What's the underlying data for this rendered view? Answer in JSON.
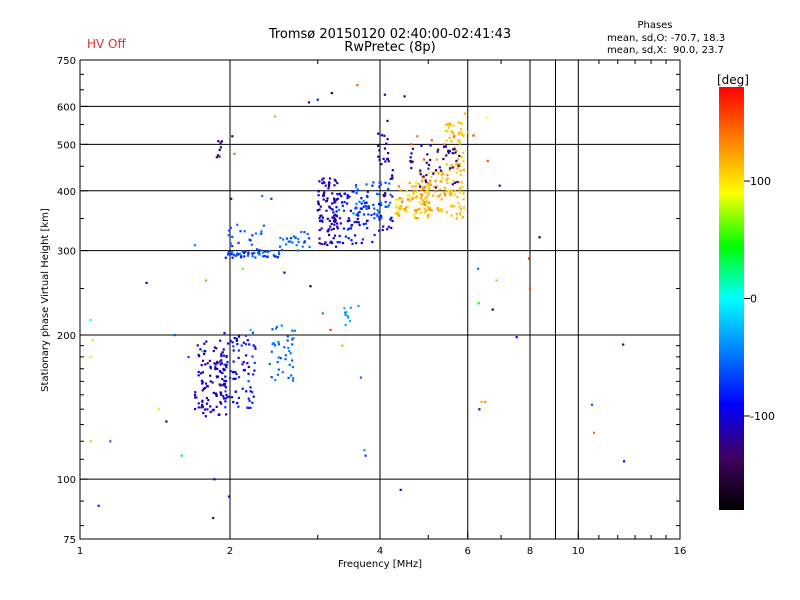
{
  "hv_status": "HV Off",
  "title": "Tromsø 20150120 02:40:00-02:41:43",
  "subtitle": "RwPretec (8p)",
  "phases": {
    "title": "Phases",
    "o_line": "mean, sd,O: -70.7, 18.3",
    "x_line": "mean, sd,X:  90.0, 23.7"
  },
  "colors": {
    "frame": "#000000",
    "hv_text": "#e03030"
  },
  "chart_data": {
    "type": "scatter",
    "title": "Tromsø 20150120 02:40:00-02:41:43",
    "subtitle": "RwPretec (8p)",
    "xlabel": "Frequency [MHz]",
    "ylabel": "Stationary phase Virtual Height [km]",
    "xscale": "log",
    "yscale": "log",
    "xlim": [
      1,
      16
    ],
    "ylim": [
      75,
      750
    ],
    "x_ticks": [
      1,
      2,
      4,
      6,
      8,
      10,
      16
    ],
    "x_tick_labels": [
      "1",
      "2",
      "4",
      "6",
      "8",
      "10",
      "16"
    ],
    "y_ticks": [
      75,
      100,
      200,
      300,
      400,
      500,
      600,
      750
    ],
    "y_tick_labels": [
      "75",
      "100",
      "200",
      "300",
      "400",
      "500",
      "600",
      "750"
    ],
    "grid": true,
    "colorbar": {
      "label": "[deg]",
      "range": [
        -180,
        180
      ],
      "ticks": [
        100,
        0,
        -100
      ],
      "tick_labels": [
        "100",
        "0",
        "-100"
      ]
    },
    "points": [
      [
        1.05,
        215,
        0
      ],
      [
        1.06,
        195,
        110
      ],
      [
        1.05,
        180,
        100
      ],
      [
        1.05,
        120,
        110
      ],
      [
        1.09,
        88,
        -80
      ],
      [
        1.15,
        120,
        -50
      ],
      [
        1.36,
        257,
        -110
      ],
      [
        1.44,
        140,
        100
      ],
      [
        1.49,
        132,
        -140
      ],
      [
        1.55,
        200,
        -60
      ],
      [
        1.6,
        112,
        40
      ],
      [
        1.65,
        180,
        -70
      ],
      [
        1.7,
        308,
        -40
      ],
      [
        1.73,
        144,
        -100
      ],
      [
        1.76,
        185,
        50
      ],
      [
        1.79,
        260,
        130
      ],
      [
        1.85,
        83,
        -140
      ],
      [
        1.86,
        100,
        -110
      ],
      [
        1.88,
        150,
        -120
      ],
      [
        1.94,
        170,
        -100
      ],
      [
        1.99,
        92,
        -110
      ],
      [
        2.01,
        385,
        -130
      ],
      [
        2.02,
        520,
        -150
      ],
      [
        2.04,
        478,
        140
      ],
      [
        2.12,
        275,
        60
      ],
      [
        2.2,
        205,
        -20
      ],
      [
        2.32,
        390,
        -50
      ],
      [
        2.42,
        385,
        -70
      ],
      [
        2.46,
        572,
        120
      ],
      [
        2.57,
        270,
        -120
      ],
      [
        2.88,
        612,
        -130
      ],
      [
        2.9,
        253,
        -170
      ],
      [
        3.0,
        620,
        -80
      ],
      [
        3.07,
        222,
        -40
      ],
      [
        3.18,
        205,
        160
      ],
      [
        3.2,
        640,
        -150
      ],
      [
        3.31,
        365,
        -40
      ],
      [
        3.36,
        190,
        120
      ],
      [
        3.41,
        210,
        -30
      ],
      [
        3.6,
        665,
        140
      ],
      [
        3.62,
        230,
        -30
      ],
      [
        3.66,
        163,
        -50
      ],
      [
        3.72,
        115,
        -40
      ],
      [
        3.74,
        112,
        -70
      ],
      [
        3.86,
        410,
        -80
      ],
      [
        4.09,
        635,
        -110
      ],
      [
        4.14,
        560,
        -120
      ],
      [
        4.4,
        95,
        -120
      ],
      [
        4.48,
        630,
        -140
      ],
      [
        4.62,
        500,
        160
      ],
      [
        4.75,
        520,
        140
      ],
      [
        4.9,
        465,
        150
      ],
      [
        5.0,
        445,
        -70
      ],
      [
        5.08,
        510,
        150
      ],
      [
        5.2,
        465,
        120
      ],
      [
        5.38,
        500,
        145
      ],
      [
        5.49,
        480,
        -120
      ],
      [
        5.63,
        520,
        150
      ],
      [
        5.83,
        470,
        110
      ],
      [
        5.92,
        580,
        120
      ],
      [
        6.02,
        530,
        80
      ],
      [
        6.16,
        522,
        160
      ],
      [
        6.29,
        275,
        -50
      ],
      [
        6.31,
        233,
        40
      ],
      [
        6.33,
        140,
        -90
      ],
      [
        6.39,
        145,
        120
      ],
      [
        6.5,
        145,
        130
      ],
      [
        6.53,
        570,
        90
      ],
      [
        6.58,
        462,
        150
      ],
      [
        6.73,
        226,
        -150
      ],
      [
        6.85,
        260,
        120
      ],
      [
        6.95,
        410,
        -120
      ],
      [
        7.52,
        198,
        -90
      ],
      [
        7.96,
        289,
        170
      ],
      [
        8.0,
        250,
        160
      ],
      [
        8.36,
        320,
        -170
      ],
      [
        10.65,
        143,
        -60
      ],
      [
        10.75,
        125,
        140
      ],
      [
        12.3,
        191,
        -110
      ],
      [
        12.35,
        109,
        -100
      ]
    ],
    "clusters": [
      {
        "f": [
          1.7,
          1.97
        ],
        "h": [
          135,
          195
        ],
        "phase": [
          -130,
          -90
        ],
        "n": 110
      },
      {
        "f": [
          1.94,
          2.25
        ],
        "h": [
          140,
          205
        ],
        "phase": [
          -110,
          -60
        ],
        "n": 80
      },
      {
        "f": [
          2.4,
          2.7
        ],
        "h": [
          160,
          210
        ],
        "phase": [
          -70,
          -40
        ],
        "n": 40
      },
      {
        "f": [
          1.88,
          1.93
        ],
        "h": [
          470,
          515
        ],
        "phase": [
          -150,
          -120
        ],
        "n": 8
      },
      {
        "f": [
          1.96,
          2.55
        ],
        "h": [
          290,
          300
        ],
        "phase": [
          -90,
          -40
        ],
        "n": 45
      },
      {
        "f": [
          1.98,
          2.35
        ],
        "h": [
          300,
          340
        ],
        "phase": [
          -80,
          -40
        ],
        "n": 20
      },
      {
        "f": [
          2.5,
          2.9
        ],
        "h": [
          300,
          330
        ],
        "phase": [
          -70,
          -40
        ],
        "n": 25
      },
      {
        "f": [
          3.0,
          3.3
        ],
        "h": [
          305,
          430
        ],
        "phase": [
          -130,
          -90
        ],
        "n": 90
      },
      {
        "f": [
          3.2,
          3.9
        ],
        "h": [
          310,
          400
        ],
        "phase": [
          -110,
          -70
        ],
        "n": 80
      },
      {
        "f": [
          3.5,
          4.2
        ],
        "h": [
          350,
          420
        ],
        "phase": [
          -70,
          -40
        ],
        "n": 45
      },
      {
        "f": [
          3.95,
          4.25
        ],
        "h": [
          330,
          530
        ],
        "phase": [
          -130,
          -90
        ],
        "n": 40
      },
      {
        "f": [
          4.3,
          5.1
        ],
        "h": [
          350,
          420
        ],
        "phase": [
          90,
          140
        ],
        "n": 90
      },
      {
        "f": [
          4.8,
          5.5
        ],
        "h": [
          360,
          440
        ],
        "phase": [
          100,
          130
        ],
        "n": 60
      },
      {
        "f": [
          5.4,
          5.9
        ],
        "h": [
          350,
          560
        ],
        "phase": [
          105,
          120
        ],
        "n": 90
      },
      {
        "f": [
          4.5,
          5.8
        ],
        "h": [
          400,
          500
        ],
        "phase": [
          -140,
          -90
        ],
        "n": 45
      },
      {
        "f": [
          3.35,
          3.5
        ],
        "h": [
          210,
          230
        ],
        "phase": [
          -40,
          -20
        ],
        "n": 8
      }
    ]
  }
}
